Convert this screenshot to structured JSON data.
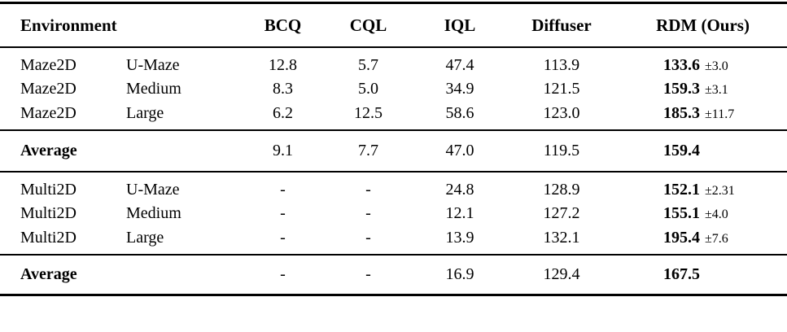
{
  "colors": {
    "text": "#000000",
    "background": "#ffffff",
    "rule": "#000000"
  },
  "table": {
    "header": {
      "environment": "Environment",
      "bcq": "BCQ",
      "cql": "CQL",
      "iql": "IQL",
      "diffuser": "Diffuser",
      "rdm": "RDM (Ours)"
    },
    "maze2d_rows": [
      {
        "env": "Maze2D",
        "size": "U-Maze",
        "bcq": "12.8",
        "cql": "5.7",
        "iql": "47.4",
        "diffuser": "113.9",
        "rdm": "133.6",
        "err": "±3.0"
      },
      {
        "env": "Maze2D",
        "size": "Medium",
        "bcq": "8.3",
        "cql": "5.0",
        "iql": "34.9",
        "diffuser": "121.5",
        "rdm": "159.3",
        "err": "±3.1"
      },
      {
        "env": "Maze2D",
        "size": "Large",
        "bcq": "6.2",
        "cql": "12.5",
        "iql": "58.6",
        "diffuser": "123.0",
        "rdm": "185.3",
        "err": "±11.7"
      }
    ],
    "maze2d_average": {
      "label": "Average",
      "bcq": "9.1",
      "cql": "7.7",
      "iql": "47.0",
      "diffuser": "119.5",
      "rdm": "159.4",
      "err": ""
    },
    "multi2d_rows": [
      {
        "env": "Multi2D",
        "size": "U-Maze",
        "bcq": "-",
        "cql": "-",
        "iql": "24.8",
        "diffuser": "128.9",
        "rdm": "152.1",
        "err": "±2.31"
      },
      {
        "env": "Multi2D",
        "size": "Medium",
        "bcq": "-",
        "cql": "-",
        "iql": "12.1",
        "diffuser": "127.2",
        "rdm": "155.1",
        "err": "±4.0"
      },
      {
        "env": "Multi2D",
        "size": "Large",
        "bcq": "-",
        "cql": "-",
        "iql": "13.9",
        "diffuser": "132.1",
        "rdm": "195.4",
        "err": "±7.6"
      }
    ],
    "multi2d_average": {
      "label": "Average",
      "bcq": "-",
      "cql": "-",
      "iql": "16.9",
      "diffuser": "129.4",
      "rdm": "167.5",
      "err": ""
    }
  }
}
